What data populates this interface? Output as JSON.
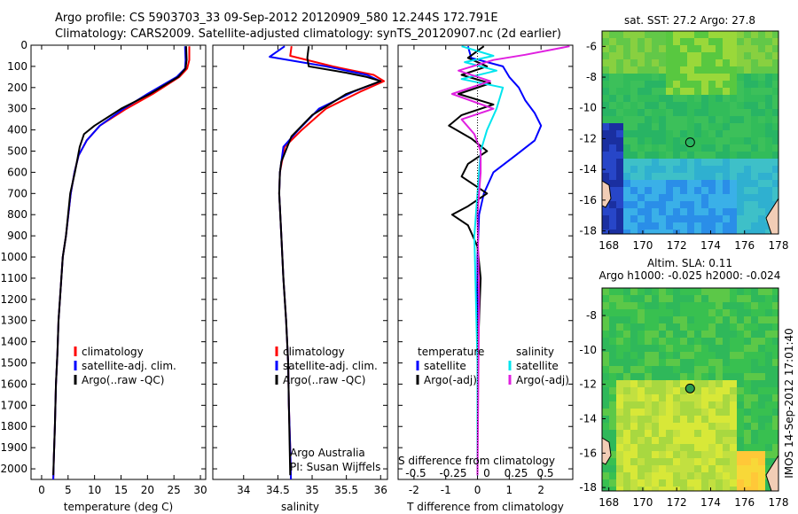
{
  "header": {
    "line1": "Argo profile: CS 5903703_33 09-Sep-2012 20120909_580 12.244S 172.791E",
    "line2": "Climatology: CARS2009. Satellite-adjusted climatology: synTS_20120907.nc (2d earlier)"
  },
  "colors": {
    "climatology": "#ff0000",
    "satellite": "#0000ff",
    "argo": "#000000",
    "salinity_satellite": "#00e5ee",
    "salinity_argo": "#e020e0"
  },
  "chart_data": [
    {
      "type": "line",
      "panel": "temperature",
      "xlabel": "temperature (deg C)",
      "xlim": [
        -2,
        31
      ],
      "ylim": [
        2050,
        0
      ],
      "xticks": [
        0,
        5,
        10,
        15,
        20,
        25,
        30
      ],
      "yticks": [
        0,
        100,
        200,
        300,
        400,
        500,
        600,
        700,
        800,
        900,
        1000,
        1100,
        1200,
        1300,
        1400,
        1500,
        1600,
        1700,
        1800,
        1900,
        2000
      ],
      "legend": [
        "climatology",
        "satellite-adj. clim.",
        "Argo(..raw -QC)"
      ],
      "series": [
        {
          "name": "climatology",
          "color": "#ff0000",
          "x": [
            27.9,
            27.9,
            27.5,
            26,
            21,
            16,
            11,
            8.5,
            7,
            6.2,
            5.5,
            4.6,
            4,
            3.6,
            3.2,
            3,
            2.7,
            2.5,
            2.3,
            2.2
          ],
          "y": [
            5,
            70,
            110,
            150,
            230,
            300,
            380,
            450,
            520,
            600,
            700,
            900,
            1000,
            1150,
            1300,
            1450,
            1600,
            1800,
            1950,
            2050
          ]
        },
        {
          "name": "satellite-adj. clim.",
          "color": "#0000ff",
          "x": [
            27.1,
            27.2,
            27.1,
            25.5,
            20,
            15.5,
            11,
            8.5,
            7,
            6.2,
            5.5,
            4.6,
            4,
            3.6,
            3.2,
            3,
            2.7,
            2.5,
            2.3,
            2.2
          ],
          "y": [
            5,
            70,
            110,
            150,
            230,
            300,
            380,
            450,
            520,
            600,
            700,
            900,
            1000,
            1150,
            1300,
            1450,
            1600,
            1800,
            1950,
            2050
          ]
        },
        {
          "name": "Argo(..raw -QC)",
          "color": "#000000",
          "x": [
            27.3,
            27.4,
            27.2,
            25.8,
            20.5,
            15,
            10,
            8,
            7.2,
            6.3,
            5.4,
            4.6,
            4,
            3.6,
            3.2,
            3,
            2.7,
            2.5,
            2.3,
            2.2
          ],
          "y": [
            5,
            70,
            110,
            150,
            230,
            300,
            380,
            420,
            480,
            600,
            700,
            900,
            1000,
            1150,
            1300,
            1450,
            1600,
            1800,
            1950,
            2030
          ]
        }
      ],
      "annotation": []
    },
    {
      "type": "line",
      "panel": "salinity",
      "xlabel": "salinity",
      "xlim": [
        33.55,
        36.1
      ],
      "ylim": [
        2050,
        0
      ],
      "xticks": [
        34,
        34.5,
        35,
        35.5,
        36
      ],
      "legend": [
        "climatology",
        "satellite-adj. clim.",
        "Argo(..raw -QC)"
      ],
      "series": [
        {
          "name": "climatology",
          "color": "#ff0000",
          "x": [
            34.7,
            34.68,
            35.3,
            35.9,
            36.05,
            35.7,
            35.2,
            34.85,
            34.6,
            34.53,
            34.52,
            34.55,
            34.58,
            34.62,
            34.65,
            34.66,
            34.68,
            34.69
          ],
          "y": [
            5,
            50,
            100,
            140,
            170,
            220,
            300,
            400,
            480,
            600,
            700,
            900,
            1100,
            1300,
            1500,
            1700,
            1900,
            2050
          ]
        },
        {
          "name": "satellite-adj. clim.",
          "color": "#0000ff",
          "x": [
            34.6,
            34.38,
            35.2,
            35.8,
            36,
            35.6,
            35.1,
            34.8,
            34.58,
            34.53,
            34.52,
            34.55,
            34.58,
            34.62,
            34.65,
            34.66,
            34.68,
            34.69
          ],
          "y": [
            5,
            55,
            100,
            140,
            170,
            220,
            300,
            400,
            480,
            600,
            700,
            900,
            1100,
            1300,
            1500,
            1700,
            1900,
            2050
          ]
        },
        {
          "name": "Argo(..raw -QC)",
          "color": "#000000",
          "x": [
            34.95,
            34.93,
            34.95,
            35.5,
            35.8,
            36.0,
            35.5,
            35.0,
            34.7,
            34.55,
            34.53,
            34.52,
            34.55,
            34.58,
            34.62,
            34.65,
            34.66,
            34.68
          ],
          "y": [
            5,
            60,
            100,
            130,
            150,
            170,
            230,
            330,
            430,
            550,
            600,
            700,
            900,
            1100,
            1300,
            1500,
            1700,
            2030
          ]
        }
      ],
      "annotation": [
        "Argo Australia",
        "PI: Susan Wijffels"
      ]
    },
    {
      "type": "line",
      "panel": "difference",
      "xlabel": "T difference from climatology",
      "xlabel_top": "S difference from climatology",
      "xlim": [
        -2.5,
        3
      ],
      "ylim": [
        2050,
        0
      ],
      "xticks": [
        -2,
        -1,
        0,
        1,
        2
      ],
      "xticks_top": [
        -0.5,
        -0.25,
        0,
        0.25,
        0.5
      ],
      "legend_titles": [
        "temperature",
        "salinity"
      ],
      "legend": [
        "satellite",
        "Argo(-adj)",
        "satellite",
        "Argo(-adj)"
      ],
      "series": [
        {
          "name": "satellite",
          "group": "temperature",
          "color": "#0000ff",
          "x": [
            -0.3,
            -0.2,
            0.8,
            1.0,
            1.3,
            1.5,
            1.8,
            2.0,
            1.8,
            1.2,
            0.5,
            0.2,
            0.05,
            0,
            0,
            0
          ],
          "y": [
            5,
            60,
            100,
            150,
            200,
            260,
            320,
            380,
            450,
            520,
            600,
            700,
            800,
            1000,
            1500,
            2030
          ]
        },
        {
          "name": "Argo(-adj)",
          "group": "temperature",
          "color": "#000000",
          "x": [
            0.2,
            -0.3,
            0.3,
            -0.5,
            0.4,
            -0.6,
            0.5,
            -0.5,
            -0.9,
            -0.2,
            0.3,
            -0.3,
            -0.5,
            0.3,
            -0.3,
            -0.8,
            -0.3,
            0,
            0.1,
            0,
            0
          ],
          "y": [
            5,
            60,
            100,
            140,
            180,
            230,
            280,
            330,
            380,
            440,
            500,
            560,
            620,
            700,
            760,
            800,
            850,
            950,
            1100,
            1500,
            2030
          ]
        },
        {
          "name": "satellite",
          "group": "salinity",
          "color": "#00e5ee",
          "x": [
            -0.5,
            0.5,
            -0.4,
            0.6,
            -0.5,
            0.8,
            0.6,
            0.3,
            0.1,
            0,
            -0.1,
            0,
            0
          ],
          "y": [
            5,
            50,
            80,
            120,
            160,
            200,
            300,
            400,
            500,
            700,
            900,
            1500,
            2030
          ]
        },
        {
          "name": "Argo(-adj)",
          "group": "salinity",
          "color": "#e020e0",
          "x": [
            2.9,
            1.5,
            0.5,
            -0.6,
            0.4,
            -0.8,
            0.5,
            -0.5,
            -0.1,
            0.1,
            0.1,
            0,
            0.05,
            0
          ],
          "y": [
            5,
            45,
            70,
            120,
            170,
            230,
            300,
            350,
            420,
            500,
            600,
            800,
            1200,
            2030
          ]
        }
      ]
    },
    {
      "type": "heatmap",
      "panel": "sst-map",
      "title": "sat. SST: 27.2 Argo: 27.8",
      "xticks": [
        168,
        170,
        172,
        174,
        176,
        178
      ],
      "yticks": [
        -6,
        -8,
        -10,
        -12,
        -14,
        -16,
        -18
      ],
      "xlim": [
        167.6,
        178
      ],
      "ylim": [
        -18.2,
        -5
      ],
      "argo_position": {
        "lon": 172.79,
        "lat": -12.24
      }
    },
    {
      "type": "heatmap",
      "panel": "sla-map",
      "title_line1": "Altim. SLA: 0.11",
      "title_line2": "Argo h1000: -0.025 h2000: -0.024",
      "xticks": [
        168,
        170,
        172,
        174,
        176,
        178
      ],
      "yticks": [
        -8,
        -10,
        -12,
        -14,
        -16,
        -18
      ],
      "xlim": [
        167.6,
        178
      ],
      "ylim": [
        -18.2,
        -6.4
      ],
      "argo_position": {
        "lon": 172.79,
        "lat": -12.24
      }
    }
  ],
  "timestamp": "IMOS 14-Sep-2012 17:01:40"
}
